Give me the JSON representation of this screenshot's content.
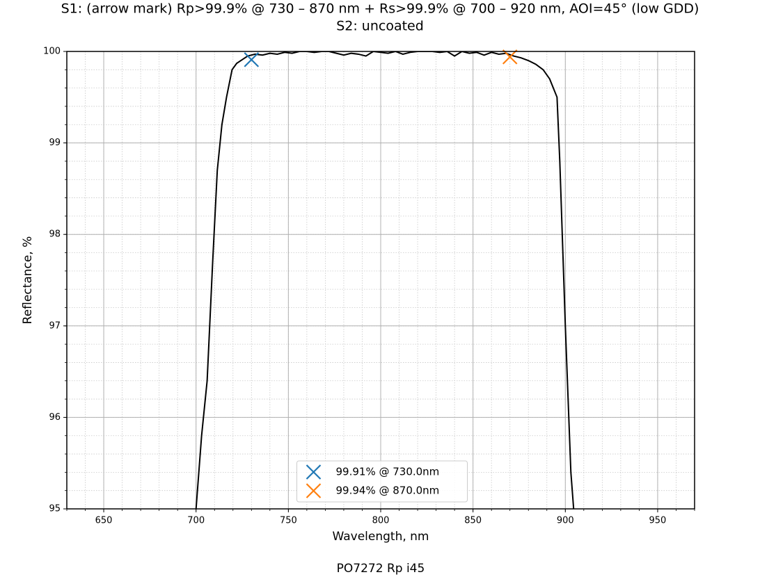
{
  "chart_data": {
    "type": "line",
    "title": [
      "S1: (arrow mark) Rp>99.9% @ 730 – 870 nm + Rs>99.9% @ 700 – 920 nm, AOI=45° (low GDD)",
      "S2: uncoated"
    ],
    "xlabel": "Wavelength, nm",
    "ylabel": "Reflectance, %",
    "footer": "PO7272 Rp i45",
    "xlim": [
      630,
      970
    ],
    "ylim": [
      95,
      100
    ],
    "xticks": [
      650,
      700,
      750,
      800,
      850,
      900,
      950
    ],
    "yticks": [
      95,
      96,
      97,
      98,
      99,
      100
    ],
    "xminorticks": [
      630,
      640,
      650,
      660,
      670,
      680,
      690,
      700,
      710,
      720,
      730,
      740,
      750,
      760,
      770,
      780,
      790,
      800,
      810,
      820,
      830,
      840,
      850,
      860,
      870,
      880,
      890,
      900,
      910,
      920,
      930,
      940,
      950,
      960,
      970
    ],
    "yminorticks": [
      95,
      95.2,
      95.4,
      95.6,
      95.8,
      96,
      96.2,
      96.4,
      96.6,
      96.8,
      97,
      97.2,
      97.4,
      97.6,
      97.8,
      98,
      98.2,
      98.4,
      98.6,
      98.8,
      99,
      99.2,
      99.4,
      99.6,
      99.8,
      100
    ],
    "grid": true,
    "minor_grid": true,
    "legend": "lower center",
    "series": [
      {
        "color": "#000000",
        "x": [
          700,
          703,
          706,
          709,
          711.5,
          714,
          716.5,
          719.5,
          722,
          725,
          728,
          732,
          736,
          740,
          744,
          748,
          752,
          756,
          760,
          764,
          768,
          772,
          776,
          780,
          784,
          788,
          792,
          796,
          800,
          804,
          808,
          812,
          816,
          820,
          824,
          828,
          832,
          836,
          840,
          844,
          848,
          852,
          856,
          860,
          864,
          868,
          872,
          876,
          880,
          884,
          888,
          891.5,
          895.5,
          897,
          898.5,
          900,
          901.5,
          903,
          904.5
        ],
        "values": [
          95,
          95.8,
          96.4,
          97.7,
          98.7,
          99.2,
          99.5,
          99.8,
          99.87,
          99.91,
          99.95,
          99.97,
          99.96,
          99.98,
          99.97,
          99.99,
          99.98,
          100,
          100,
          99.99,
          100,
          100,
          99.98,
          99.96,
          99.98,
          99.97,
          99.95,
          100,
          99.99,
          99.98,
          100,
          99.97,
          99.99,
          100,
          100,
          100,
          99.99,
          100,
          99.95,
          100,
          99.98,
          99.99,
          99.96,
          99.99,
          99.97,
          99.98,
          99.95,
          99.93,
          99.9,
          99.86,
          99.8,
          99.7,
          99.5,
          98.8,
          97.9,
          97.0,
          96.2,
          95.4,
          95
        ]
      }
    ],
    "markers": [
      {
        "name": "99.91% @ 730.0nm",
        "color": "#1f77b4",
        "x": 730,
        "value": 99.91
      },
      {
        "name": "99.94% @ 870.0nm",
        "color": "#ff7f0e",
        "x": 870,
        "value": 99.94
      }
    ]
  }
}
